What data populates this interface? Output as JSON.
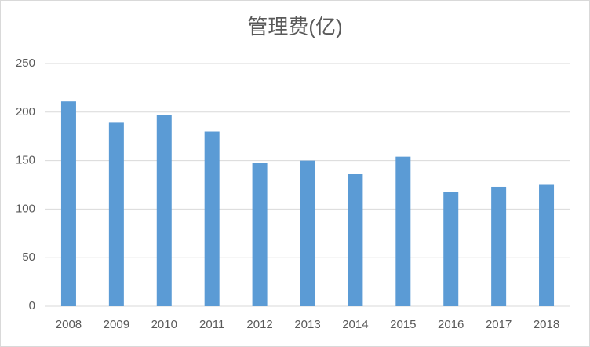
{
  "chart_data": {
    "type": "bar",
    "title": "管理费(亿)",
    "categories": [
      "2008",
      "2009",
      "2010",
      "2011",
      "2012",
      "2013",
      "2014",
      "2015",
      "2016",
      "2017",
      "2018"
    ],
    "values": [
      211,
      189,
      197,
      180,
      148,
      150,
      136,
      154,
      118,
      123,
      125
    ],
    "color": "#5b9bd5",
    "ylim": [
      0,
      250
    ],
    "yticks": [
      0,
      50,
      100,
      150,
      200,
      250
    ],
    "grid": true
  }
}
